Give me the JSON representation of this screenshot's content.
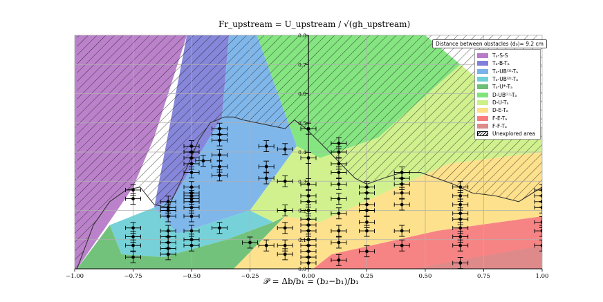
{
  "chart_data": {
    "type": "scatter",
    "x_title": "𝒫 = Δb/b₁ = (b₂−b₁)/b₁",
    "y_title": "Fr_upstream = U_upstream / √(gh_upstream)",
    "xlim": [
      -1.0,
      1.0
    ],
    "ylim": [
      0.0,
      0.8
    ],
    "x_ticks": [
      "−1.00",
      "−0.75",
      "−0.50",
      "−0.25",
      "0.00",
      "0.25",
      "0.50",
      "0.75",
      "1.00"
    ],
    "y_ticks": [
      "0.0",
      "0.1",
      "0.2",
      "0.3",
      "0.4",
      "0.5",
      "0.6",
      "0.7",
      "0.8"
    ],
    "grid": true,
    "annotation": "Distance between obstacles (d₀)= 9.2 cm",
    "legend_position": "top-right",
    "legend": [
      {
        "label": "Tₐ-S-S",
        "color": "#b77bc8"
      },
      {
        "label": "Tₐ-B-Tₐ",
        "color": "#8080d8"
      },
      {
        "label": "Tₐ-UB⁽¹⁾-Tₐ",
        "color": "#79b3ea"
      },
      {
        "label": "Tₐ-UB⁽²⁾-Tₐ",
        "color": "#6fd0d6"
      },
      {
        "label": "Tₐ-U*-Tₐ",
        "color": "#6cbf74"
      },
      {
        "label": "D-UB⁽¹⁾-Tₐ",
        "color": "#7de47a"
      },
      {
        "label": "D-U-Tₐ",
        "color": "#cdf088"
      },
      {
        "label": "D-E-Tₐ",
        "color": "#fddf86"
      },
      {
        "label": "F-E-Tₐ",
        "color": "#f77d7d"
      },
      {
        "label": "F-F-Tₐ",
        "color": "#dd8a8a"
      },
      {
        "label": "Unexplored area",
        "color": "hatch"
      }
    ],
    "series": [
      {
        "x": -0.75,
        "y": [
          0.04,
          0.08,
          0.11,
          0.14,
          0.24,
          0.27
        ]
      },
      {
        "x": -0.6,
        "y": [
          0.05,
          0.07,
          0.09,
          0.11,
          0.13,
          0.18,
          0.2,
          0.21,
          0.23
        ]
      },
      {
        "x": -0.5,
        "y": [
          0.08,
          0.1,
          0.13,
          0.18,
          0.21,
          0.23,
          0.24,
          0.25,
          0.26,
          0.28,
          0.33,
          0.36,
          0.38,
          0.4,
          0.42
        ]
      },
      {
        "x": -0.45,
        "y": [
          0.37
        ]
      },
      {
        "x": -0.38,
        "y": [
          0.14,
          0.32,
          0.35,
          0.39,
          0.44,
          0.46,
          0.48
        ]
      },
      {
        "x": -0.25,
        "y": [
          0.09
        ]
      },
      {
        "x": -0.18,
        "y": [
          0.08,
          0.31,
          0.35,
          0.42
        ]
      },
      {
        "x": -0.1,
        "y": [
          0.05,
          0.08,
          0.14,
          0.2,
          0.3,
          0.41
        ]
      },
      {
        "x": 0.0,
        "y": [
          0.02,
          0.04,
          0.06,
          0.08,
          0.1,
          0.13,
          0.15,
          0.17,
          0.2,
          0.23,
          0.25,
          0.29,
          0.38,
          0.48
        ]
      },
      {
        "x": 0.13,
        "y": [
          0.03,
          0.09,
          0.13,
          0.19,
          0.24,
          0.29,
          0.33,
          0.36,
          0.4,
          0.43
        ]
      },
      {
        "x": 0.25,
        "y": [
          0.06,
          0.13,
          0.16,
          0.2,
          0.22,
          0.26,
          0.28
        ]
      },
      {
        "x": 0.4,
        "y": [
          0.08,
          0.13,
          0.22,
          0.26,
          0.29,
          0.31,
          0.33
        ]
      },
      {
        "x": 0.65,
        "y": [
          0.02,
          0.08,
          0.11,
          0.14,
          0.17,
          0.19,
          0.22,
          0.25,
          0.28
        ]
      },
      {
        "x": 1.0,
        "y": [
          0.08,
          0.13,
          0.16,
          0.21,
          0.23,
          0.25,
          0.27
        ]
      }
    ],
    "boundary_curve": {
      "x": [
        -0.99,
        -0.92,
        -0.85,
        -0.78,
        -0.72,
        -0.66,
        -0.6,
        -0.54,
        -0.47,
        -0.42,
        -0.36,
        -0.32,
        -0.28,
        -0.22,
        -0.16,
        -0.1,
        -0.06,
        -0.01,
        0.04,
        0.09,
        0.15,
        0.2,
        0.25,
        0.32,
        0.4,
        0.48,
        0.55,
        0.62,
        0.7,
        0.8,
        0.9,
        1.0
      ],
      "y": [
        0.0,
        0.15,
        0.23,
        0.27,
        0.28,
        0.22,
        0.21,
        0.31,
        0.44,
        0.5,
        0.52,
        0.52,
        0.51,
        0.5,
        0.49,
        0.48,
        0.51,
        0.48,
        0.44,
        0.4,
        0.35,
        0.31,
        0.29,
        0.31,
        0.33,
        0.33,
        0.31,
        0.29,
        0.26,
        0.25,
        0.23,
        0.28
      ]
    },
    "regions": [
      {
        "name": "Tₐ-S-S",
        "polygon": [
          [
            -1.0,
            0.0
          ],
          [
            -1.0,
            0.8
          ],
          [
            -0.52,
            0.8
          ],
          [
            -0.66,
            0.45
          ],
          [
            -0.75,
            0.28
          ],
          [
            -0.99,
            0.0
          ]
        ]
      },
      {
        "name": "Tₐ-B-Tₐ",
        "polygon": [
          [
            -0.52,
            0.8
          ],
          [
            -0.34,
            0.8
          ],
          [
            -0.37,
            0.52
          ],
          [
            -0.58,
            0.24
          ],
          [
            -0.66,
            0.21
          ]
        ]
      },
      {
        "name": "Tₐ-UB⁽¹⁾-Tₐ",
        "polygon": [
          [
            -0.34,
            0.8
          ],
          [
            -0.22,
            0.8
          ],
          [
            -0.05,
            0.42
          ],
          [
            -0.25,
            0.2
          ],
          [
            -0.56,
            0.12
          ],
          [
            -0.66,
            0.21
          ],
          [
            -0.58,
            0.24
          ],
          [
            -0.37,
            0.52
          ]
        ]
      },
      {
        "name": "Tₐ-UB⁽²⁾-Tₐ",
        "polygon": [
          [
            -0.66,
            0.21
          ],
          [
            -0.56,
            0.12
          ],
          [
            -0.25,
            0.2
          ],
          [
            -0.15,
            0.16
          ],
          [
            -0.35,
            0.1
          ],
          [
            -0.62,
            0.04
          ],
          [
            -0.8,
            0.05
          ],
          [
            -0.85,
            0.15
          ]
        ]
      },
      {
        "name": "Tₐ-U*-Tₐ",
        "polygon": [
          [
            -0.99,
            0.0
          ],
          [
            -0.85,
            0.15
          ],
          [
            -0.8,
            0.05
          ],
          [
            -0.62,
            0.04
          ],
          [
            -0.35,
            0.1
          ],
          [
            -0.15,
            0.16
          ],
          [
            -0.1,
            0.18
          ],
          [
            -0.32,
            0.0
          ]
        ]
      },
      {
        "name": "D-UB⁽¹⁾-Tₐ",
        "polygon": [
          [
            -0.22,
            0.8
          ],
          [
            0.12,
            0.8
          ],
          [
            0.5,
            0.8
          ],
          [
            0.65,
            0.7
          ],
          [
            0.3,
            0.45
          ],
          [
            0.05,
            0.38
          ],
          [
            -0.05,
            0.42
          ]
        ]
      },
      {
        "name": "D-U-Tₐ",
        "polygon": [
          [
            -0.05,
            0.42
          ],
          [
            0.05,
            0.38
          ],
          [
            0.3,
            0.45
          ],
          [
            0.65,
            0.7
          ],
          [
            0.8,
            0.6
          ],
          [
            1.0,
            0.48
          ],
          [
            1.0,
            0.4
          ],
          [
            0.6,
            0.36
          ],
          [
            0.35,
            0.27
          ],
          [
            0.05,
            0.16
          ],
          [
            -0.1,
            0.18
          ],
          [
            -0.15,
            0.16
          ],
          [
            -0.25,
            0.2
          ]
        ]
      },
      {
        "name": "D-E-Tₐ",
        "polygon": [
          [
            -0.32,
            0.0
          ],
          [
            -0.1,
            0.18
          ],
          [
            0.05,
            0.16
          ],
          [
            0.35,
            0.27
          ],
          [
            0.6,
            0.36
          ],
          [
            1.0,
            0.4
          ],
          [
            1.0,
            0.18
          ],
          [
            0.55,
            0.13
          ],
          [
            0.1,
            0.05
          ],
          [
            0.02,
            0.0
          ]
        ]
      },
      {
        "name": "F-E-Tₐ",
        "polygon": [
          [
            0.02,
            0.0
          ],
          [
            0.1,
            0.05
          ],
          [
            0.55,
            0.13
          ],
          [
            1.0,
            0.18
          ],
          [
            1.0,
            0.0
          ]
        ]
      },
      {
        "name": "F-F-Tₐ",
        "polygon": [
          [
            0.45,
            0.0
          ],
          [
            0.65,
            0.03
          ],
          [
            1.0,
            0.08
          ],
          [
            1.0,
            0.0
          ]
        ]
      }
    ]
  }
}
